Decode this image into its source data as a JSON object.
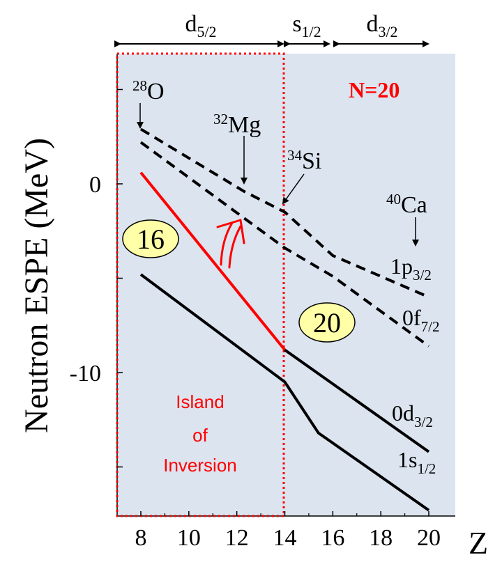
{
  "chart_data": {
    "type": "line",
    "ylabel": "Neutron ESPE (MeV)",
    "xlabel": "Z",
    "xlim": [
      7,
      21
    ],
    "ylim": [
      -17.5,
      8
    ],
    "xticks": [
      8,
      10,
      12,
      14,
      16,
      18,
      20
    ],
    "xtick_labels": [
      "8",
      "10",
      "12",
      "14",
      "16",
      "18",
      "20"
    ],
    "yticks": [
      0,
      -10
    ],
    "ytick_labels": [
      "0",
      "-10"
    ],
    "series": [
      {
        "name": "0d3/2",
        "color": "#ff0000",
        "style": "solid",
        "x": [
          8,
          14
        ],
        "y": [
          0.6,
          -8.8
        ]
      },
      {
        "name": "0d3/2",
        "color": "#000000",
        "style": "solid",
        "x": [
          14,
          20
        ],
        "y": [
          -8.8,
          -14.2
        ]
      },
      {
        "name": "1s1/2",
        "color": "#000000",
        "style": "solid",
        "x": [
          8,
          14,
          15.4,
          20
        ],
        "y": [
          -4.8,
          -10.5,
          -13.2,
          -17.3
        ]
      },
      {
        "name": "1p3/2",
        "color": "#000000",
        "style": "dashed",
        "x": [
          8,
          12.3,
          14,
          16,
          20
        ],
        "y": [
          2.9,
          -0.4,
          -1.5,
          -3.8,
          -6.0
        ]
      },
      {
        "name": "0f7/2",
        "color": "#000000",
        "style": "dashed",
        "x": [
          8,
          14,
          16,
          20
        ],
        "y": [
          2.2,
          -3.4,
          -4.9,
          -8.6
        ]
      }
    ],
    "shell_labels": [
      {
        "main": "d",
        "sub": "5/2",
        "x_from": 7.1,
        "x_to": 14
      },
      {
        "main": "s",
        "sub": "1/2",
        "x_from": 14.2,
        "x_to": 15.8
      },
      {
        "main": "d",
        "sub": "3/2",
        "x_from": 16.1,
        "x_to": 20
      }
    ],
    "region": {
      "x_from": 7,
      "x_to": 14,
      "color": "#ff0000",
      "label_lines": [
        "Island",
        "of",
        "Inversion"
      ]
    },
    "background_color": "#dce4ef",
    "gap_labels": [
      "16",
      "20"
    ],
    "title_text": "N=20",
    "nucleus_labels": [
      {
        "mass": "28",
        "symbol": "O"
      },
      {
        "mass": "32",
        "symbol": "Mg"
      },
      {
        "mass": "34",
        "symbol": "Si"
      },
      {
        "mass": "40",
        "symbol": "Ca"
      }
    ],
    "level_labels": [
      {
        "main": "1p",
        "sub": "3/2"
      },
      {
        "main": "0f",
        "sub": "7/2"
      },
      {
        "main": "0d",
        "sub": "3/2"
      },
      {
        "main": "1s",
        "sub": "1/2"
      }
    ]
  }
}
